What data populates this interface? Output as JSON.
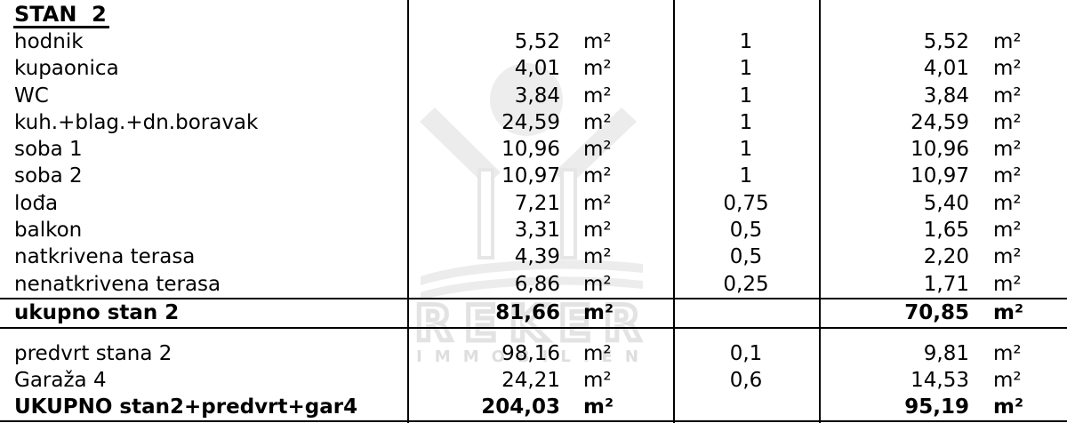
{
  "title": "STAN  2",
  "watermark": {
    "brand": "REKER",
    "subtitle": "IMMOBILIEN",
    "color": "#ececec",
    "outline_color": "#e3e3e3",
    "subtitle_color": "#dedede"
  },
  "table": {
    "rows": [
      {
        "label": "hodnik",
        "area": "5,52",
        "unit": "m²",
        "coef": "1",
        "result": "5,52",
        "unit2": "m²",
        "bold": false
      },
      {
        "label": "kupaonica",
        "area": "4,01",
        "unit": "m²",
        "coef": "1",
        "result": "4,01",
        "unit2": "m²",
        "bold": false
      },
      {
        "label": "WC",
        "area": "3,84",
        "unit": "m²",
        "coef": "1",
        "result": "3,84",
        "unit2": "m²",
        "bold": false
      },
      {
        "label": "kuh.+blag.+dn.boravak",
        "area": "24,59",
        "unit": "m²",
        "coef": "1",
        "result": "24,59",
        "unit2": "m²",
        "bold": false
      },
      {
        "label": "soba 1",
        "area": "10,96",
        "unit": "m²",
        "coef": "1",
        "result": "10,96",
        "unit2": "m²",
        "bold": false
      },
      {
        "label": "soba 2",
        "area": "10,97",
        "unit": "m²",
        "coef": "1",
        "result": "10,97",
        "unit2": "m²",
        "bold": false
      },
      {
        "label": "lođa",
        "area": "7,21",
        "unit": "m²",
        "coef": "0,75",
        "result": "5,40",
        "unit2": "m²",
        "bold": false
      },
      {
        "label": "balkon",
        "area": "3,31",
        "unit": "m²",
        "coef": "0,5",
        "result": "1,65",
        "unit2": "m²",
        "bold": false
      },
      {
        "label": "natkrivena terasa",
        "area": "4,39",
        "unit": "m²",
        "coef": "0,5",
        "result": "2,20",
        "unit2": "m²",
        "bold": false
      },
      {
        "label": "nenatkrivena terasa",
        "area": "6,86",
        "unit": "m²",
        "coef": "0,25",
        "result": "1,71",
        "unit2": "m²",
        "bold": false
      },
      {
        "label": "ukupno stan 2",
        "area": "81,66",
        "unit": "m²",
        "coef": "",
        "result": "70,85",
        "unit2": "m²",
        "bold": true
      },
      {
        "label": "predvrt stana 2",
        "area": "98,16",
        "unit": "m²",
        "coef": "0,1",
        "result": "9,81",
        "unit2": "m²",
        "bold": false
      },
      {
        "label": "Garaža 4",
        "area": "24,21",
        "unit": "m²",
        "coef": "0,6",
        "result": "14,53",
        "unit2": "m²",
        "bold": false
      },
      {
        "label": "UKUPNO stan2+predvrt+gar4",
        "area": "204,03",
        "unit": "m²",
        "coef": "",
        "result": "95,19",
        "unit2": "m²",
        "bold": true
      }
    ]
  }
}
